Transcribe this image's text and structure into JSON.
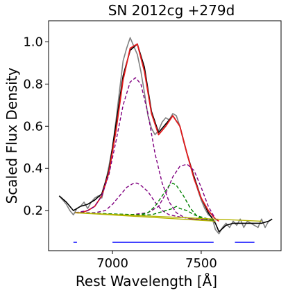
{
  "chart_data": {
    "type": "line",
    "title": "SN 2012cg  +279d",
    "xlabel": "Rest Wavelength [Å]",
    "ylabel": "Scaled Flux Density",
    "xlim": [
      6640,
      7950
    ],
    "ylim": [
      0.01,
      1.1
    ],
    "xticks": [
      7000,
      7500
    ],
    "xtick_labels": [
      "7000",
      "7500"
    ],
    "yticks": [
      0.2,
      0.4,
      0.6,
      0.8,
      1.0
    ],
    "ytick_labels": [
      "0.2",
      "0.4",
      "0.6",
      "0.8",
      "1.0"
    ],
    "grid": false,
    "legend": "none",
    "colors": {
      "observed": "#808080",
      "smoothed": "#000000",
      "fit_total": "#e41a1c",
      "purple_component": "#800080",
      "green_component": "#008000",
      "continuum": "#b5b500",
      "regions": "#0000ff"
    },
    "series": [
      {
        "style": "observed",
        "x": [
          6700,
          6720,
          6740,
          6760,
          6780,
          6800,
          6820,
          6840,
          6860,
          6880,
          6900,
          6920,
          6940,
          6960,
          6980,
          7000,
          7020,
          7040,
          7060,
          7080,
          7100,
          7120,
          7140,
          7160,
          7180,
          7200,
          7220,
          7240,
          7260,
          7280,
          7300,
          7320,
          7340,
          7360,
          7380,
          7400,
          7420,
          7440,
          7460,
          7480,
          7500,
          7520,
          7540,
          7560,
          7580,
          7600,
          7620,
          7640,
          7660,
          7680,
          7700,
          7720,
          7740,
          7760,
          7780,
          7800,
          7820,
          7840,
          7860,
          7880,
          7900
        ],
        "y": [
          0.27,
          0.25,
          0.23,
          0.2,
          0.18,
          0.21,
          0.22,
          0.24,
          0.21,
          0.24,
          0.26,
          0.27,
          0.26,
          0.33,
          0.41,
          0.5,
          0.63,
          0.77,
          0.91,
          0.97,
          1.02,
          0.98,
          0.94,
          0.86,
          0.76,
          0.65,
          0.59,
          0.56,
          0.58,
          0.62,
          0.64,
          0.63,
          0.66,
          0.65,
          0.6,
          0.53,
          0.47,
          0.41,
          0.36,
          0.3,
          0.25,
          0.21,
          0.18,
          0.17,
          0.11,
          0.09,
          0.12,
          0.14,
          0.12,
          0.15,
          0.13,
          0.16,
          0.12,
          0.15,
          0.14,
          0.13,
          0.12,
          0.16,
          0.12,
          0.15,
          0.16
        ]
      },
      {
        "style": "smoothed",
        "x": [
          6700,
          6740,
          6780,
          6820,
          6860,
          6900,
          6940,
          6980,
          7020,
          7060,
          7100,
          7140,
          7180,
          7220,
          7260,
          7300,
          7340,
          7380,
          7420,
          7460,
          7500,
          7540,
          7580,
          7600,
          7640,
          7680,
          7720,
          7760,
          7800,
          7840,
          7880,
          7900
        ],
        "y": [
          0.27,
          0.24,
          0.2,
          0.22,
          0.23,
          0.25,
          0.28,
          0.39,
          0.61,
          0.84,
          0.96,
          0.99,
          0.88,
          0.67,
          0.57,
          0.61,
          0.65,
          0.6,
          0.47,
          0.36,
          0.26,
          0.19,
          0.14,
          0.1,
          0.13,
          0.14,
          0.14,
          0.14,
          0.14,
          0.14,
          0.15,
          0.16
        ]
      },
      {
        "style": "fit_total",
        "x": [
          6790,
          6820,
          6860,
          6900,
          6940,
          6980,
          7020,
          7060,
          7100,
          7140,
          7180,
          7220,
          7260,
          7300,
          7340,
          7380,
          7420,
          7460,
          7500,
          7540,
          7580,
          7600
        ],
        "y": [
          0.19,
          0.19,
          0.2,
          0.22,
          0.27,
          0.38,
          0.58,
          0.82,
          0.97,
          0.99,
          0.86,
          0.66,
          0.56,
          0.6,
          0.65,
          0.6,
          0.47,
          0.35,
          0.26,
          0.2,
          0.16,
          0.15
        ]
      },
      {
        "style": "purple_component",
        "x": [
          6790,
          6860,
          6900,
          6940,
          6980,
          7020,
          7060,
          7100,
          7130,
          7160,
          7200,
          7240,
          7280,
          7320,
          7360,
          7400,
          7450,
          7500,
          7580
        ],
        "y": [
          0.19,
          0.2,
          0.22,
          0.27,
          0.37,
          0.53,
          0.7,
          0.81,
          0.83,
          0.8,
          0.66,
          0.47,
          0.33,
          0.24,
          0.19,
          0.17,
          0.16,
          0.16,
          0.15
        ]
      },
      {
        "style": "purple_component",
        "x": [
          6790,
          6900,
          6960,
          7000,
          7040,
          7080,
          7120,
          7140,
          7160,
          7200,
          7240,
          7280,
          7320,
          7380,
          7450,
          7580
        ],
        "y": [
          0.19,
          0.19,
          0.2,
          0.23,
          0.27,
          0.31,
          0.33,
          0.33,
          0.32,
          0.29,
          0.24,
          0.2,
          0.18,
          0.17,
          0.16,
          0.15
        ]
      },
      {
        "style": "purple_component",
        "x": [
          6790,
          7100,
          7200,
          7260,
          7300,
          7340,
          7380,
          7420,
          7460,
          7500,
          7540,
          7580,
          7600
        ],
        "y": [
          0.19,
          0.18,
          0.19,
          0.22,
          0.28,
          0.36,
          0.41,
          0.42,
          0.39,
          0.31,
          0.22,
          0.16,
          0.15
        ]
      },
      {
        "style": "green_component",
        "x": [
          6790,
          7150,
          7200,
          7240,
          7280,
          7320,
          7340,
          7360,
          7400,
          7440,
          7480,
          7520,
          7580
        ],
        "y": [
          0.19,
          0.18,
          0.19,
          0.22,
          0.27,
          0.32,
          0.33,
          0.32,
          0.27,
          0.21,
          0.17,
          0.16,
          0.15
        ]
      },
      {
        "style": "green_component",
        "x": [
          6790,
          7150,
          7220,
          7260,
          7300,
          7340,
          7360,
          7380,
          7420,
          7460,
          7500,
          7580
        ],
        "y": [
          0.19,
          0.18,
          0.18,
          0.19,
          0.2,
          0.21,
          0.22,
          0.21,
          0.2,
          0.18,
          0.17,
          0.15
        ]
      },
      {
        "style": "continuum",
        "x": [
          6790,
          7580
        ],
        "y": [
          0.19,
          0.15
        ]
      },
      {
        "style": "continuum",
        "x": [
          6790,
          7840
        ],
        "y": [
          0.19,
          0.15
        ]
      }
    ],
    "regions": [
      {
        "x": [
          6780,
          6800
        ],
        "y": 0.05
      },
      {
        "x": [
          7000,
          7570
        ],
        "y": 0.05
      },
      {
        "x": [
          7690,
          7800
        ],
        "y": 0.05
      }
    ]
  }
}
